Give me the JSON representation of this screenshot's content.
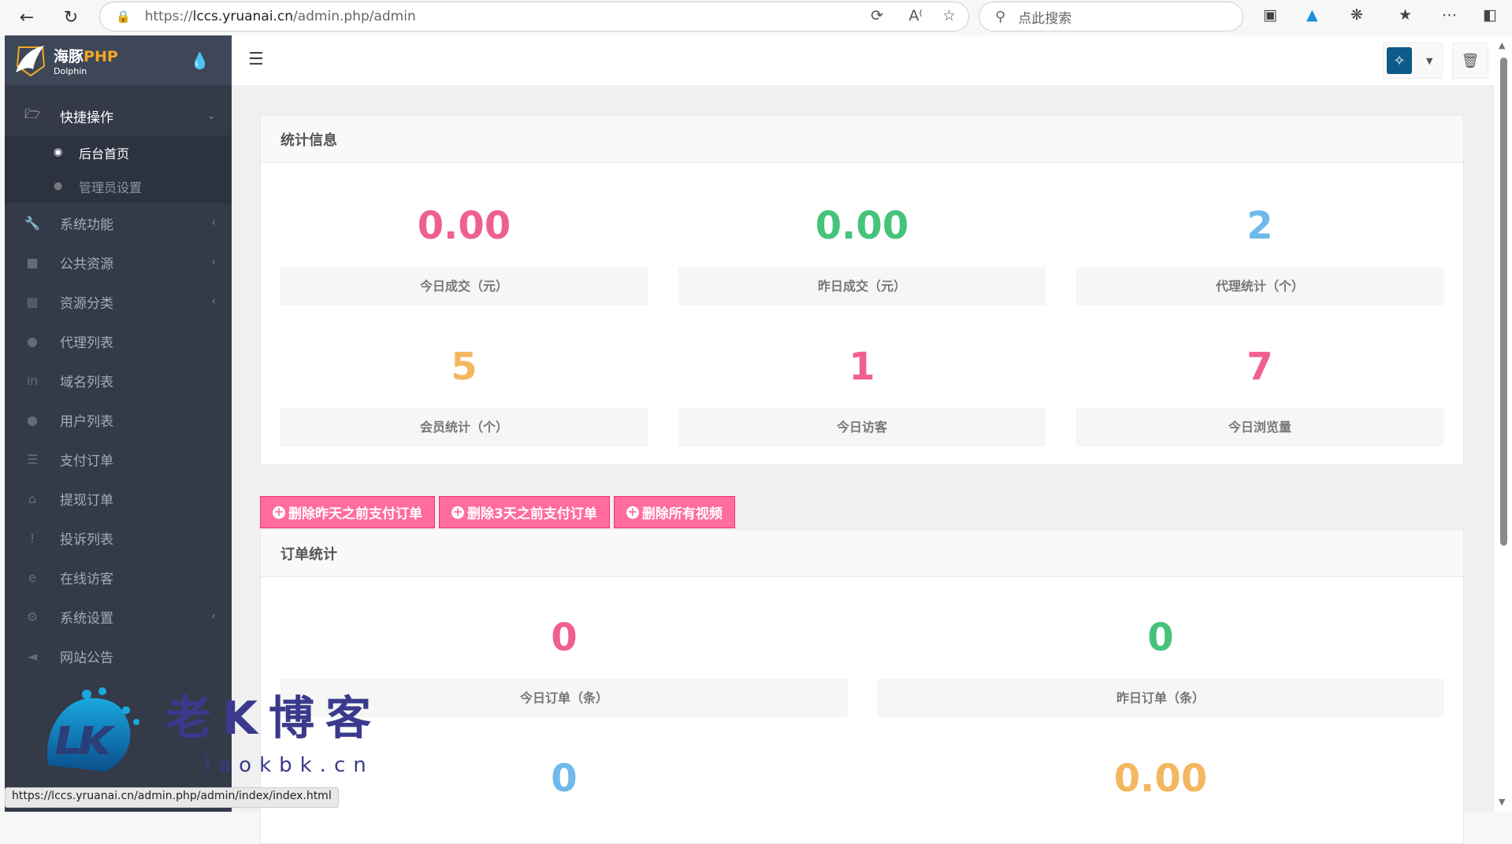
{
  "browser": {
    "url_scheme": "https://",
    "url_host": "lccs.yruanai.cn",
    "url_path": "/admin.php/admin",
    "search_placeholder": "点此搜索",
    "status_url": "https://lccs.yruanai.cn/admin.php/admin/index/index.html"
  },
  "sidebar": {
    "logo_cn": "海豚",
    "logo_php": "PHP",
    "logo_en": "Dolphin",
    "group_open": {
      "label": "快捷操作",
      "icon": "folder-open-icon"
    },
    "sub_items": [
      {
        "label": "后台首页",
        "icon": "dashboard-icon",
        "active": true
      },
      {
        "label": "管理员设置",
        "icon": "user-icon",
        "active": false
      }
    ],
    "items": [
      {
        "label": "系统功能",
        "icon": "wrench-icon",
        "has_children": true
      },
      {
        "label": "公共资源",
        "icon": "video-camera-icon",
        "has_children": true
      },
      {
        "label": "资源分类",
        "icon": "grid-icon",
        "has_children": true
      },
      {
        "label": "代理列表",
        "icon": "users-icon",
        "has_children": false
      },
      {
        "label": "域名列表",
        "icon": "linkedin-icon",
        "has_children": false
      },
      {
        "label": "用户列表",
        "icon": "user-icon",
        "has_children": false
      },
      {
        "label": "支付订单",
        "icon": "database-icon",
        "has_children": false
      },
      {
        "label": "提现订单",
        "icon": "bank-icon",
        "has_children": false
      },
      {
        "label": "投诉列表",
        "icon": "exclamation-circle-icon",
        "has_children": false
      },
      {
        "label": "在线访客",
        "icon": "internet-explorer-icon",
        "has_children": false
      },
      {
        "label": "系统设置",
        "icon": "gear-icon",
        "has_children": true
      },
      {
        "label": "网站公告",
        "icon": "bullhorn-icon",
        "has_children": false
      }
    ]
  },
  "stats_panel": {
    "title": "统计信息",
    "items": [
      {
        "value": "0.00",
        "label": "今日成交（元）",
        "color": "#f0608f"
      },
      {
        "value": "0.00",
        "label": "昨日成交（元）",
        "color": "#46c37b"
      },
      {
        "value": "2",
        "label": "代理统计（个）",
        "color": "#70b9eb"
      },
      {
        "value": "5",
        "label": "会员统计（个）",
        "color": "#f3b760"
      },
      {
        "value": "1",
        "label": "今日访客",
        "color": "#f0608f"
      },
      {
        "value": "7",
        "label": "今日浏览量",
        "color": "#f0608f"
      }
    ]
  },
  "actions": [
    {
      "label": "删除昨天之前支付订单"
    },
    {
      "label": "删除3天之前支付订单"
    },
    {
      "label": "删除所有视频"
    }
  ],
  "order_panel": {
    "title": "订单统计",
    "items": [
      {
        "value": "0",
        "label": "今日订单（条）",
        "color": "#f0608f"
      },
      {
        "value": "0",
        "label": "昨日订单（条）",
        "color": "#46c37b"
      },
      {
        "value": "0",
        "label": "",
        "color": "#70b9eb"
      },
      {
        "value": "0.00",
        "label": "",
        "color": "#f3b760"
      }
    ]
  },
  "watermark": {
    "text": "老K博客",
    "logo": "LK",
    "url": "laokbk.cn"
  },
  "colors": {
    "sidebar": "#343a48",
    "button": "#ff6c9d",
    "accent_orange": "#f5a623"
  }
}
